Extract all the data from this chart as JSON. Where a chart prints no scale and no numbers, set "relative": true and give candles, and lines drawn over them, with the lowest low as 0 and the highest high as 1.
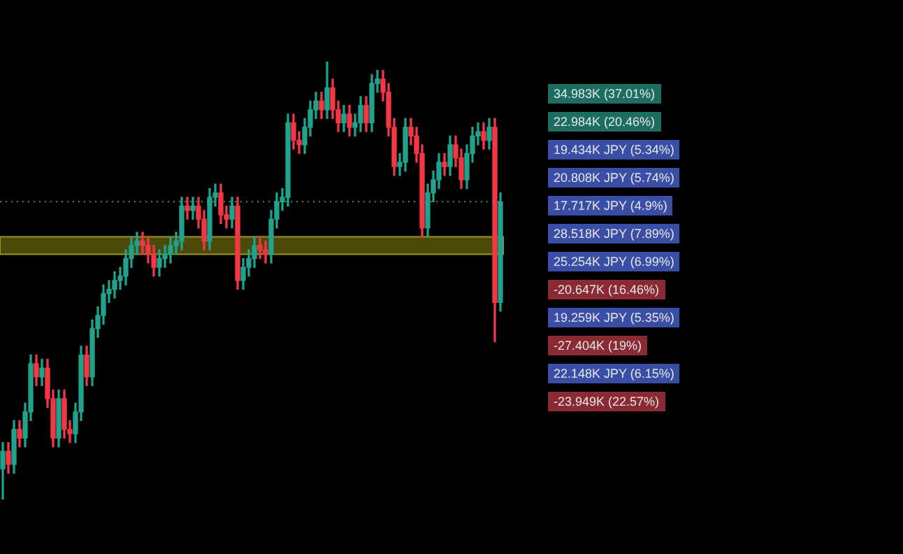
{
  "chart_data": {
    "type": "candlestick",
    "relative": true,
    "grid": false,
    "legend": false,
    "categories": [
      null,
      null,
      null,
      null,
      null,
      null,
      null,
      null,
      null,
      null,
      null,
      null,
      null,
      null,
      null,
      null,
      null,
      null,
      null,
      null,
      null,
      null,
      null,
      null,
      null,
      null,
      null,
      null,
      null,
      null,
      null,
      null,
      null,
      null,
      null,
      null,
      null,
      null,
      null,
      null,
      null,
      null,
      null,
      null,
      null,
      null,
      null,
      null,
      null,
      null,
      null,
      null,
      null,
      null,
      null,
      null,
      null,
      null,
      null,
      null,
      null,
      null,
      null,
      null,
      null,
      null,
      null,
      null,
      null,
      null,
      null,
      null,
      null,
      null,
      null,
      null,
      null,
      null,
      null,
      null,
      null,
      null,
      null,
      null,
      null,
      null,
      null,
      null,
      null,
      null
    ],
    "ohlc": [
      [
        0.07,
        0.13,
        0,
        0.11
      ],
      [
        0.11,
        0.13,
        0.06,
        0.08
      ],
      [
        0.08,
        0.18,
        0.06,
        0.16
      ],
      [
        0.16,
        0.18,
        0.12,
        0.14
      ],
      [
        0.14,
        0.22,
        0.12,
        0.2
      ],
      [
        0.2,
        0.33,
        0.18,
        0.31
      ],
      [
        0.31,
        0.33,
        0.26,
        0.28
      ],
      [
        0.28,
        0.32,
        0.26,
        0.3
      ],
      [
        0.3,
        0.32,
        0.21,
        0.23
      ],
      [
        0.23,
        0.25,
        0.12,
        0.14
      ],
      [
        0.14,
        0.25,
        0.12,
        0.23
      ],
      [
        0.23,
        0.25,
        0.14,
        0.16
      ],
      [
        0.16,
        0.18,
        0.13,
        0.15
      ],
      [
        0.15,
        0.22,
        0.13,
        0.2
      ],
      [
        0.2,
        0.35,
        0.18,
        0.33
      ],
      [
        0.33,
        0.35,
        0.26,
        0.28
      ],
      [
        0.28,
        0.41,
        0.26,
        0.39
      ],
      [
        0.39,
        0.44,
        0.37,
        0.42
      ],
      [
        0.42,
        0.49,
        0.4,
        0.47
      ],
      [
        0.47,
        0.5,
        0.45,
        0.48
      ],
      [
        0.48,
        0.52,
        0.46,
        0.5
      ],
      [
        0.5,
        0.53,
        0.48,
        0.51
      ],
      [
        0.51,
        0.57,
        0.49,
        0.55
      ],
      [
        0.55,
        0.6,
        0.53,
        0.58
      ],
      [
        0.58,
        0.61,
        0.56,
        0.59
      ],
      [
        0.59,
        0.61,
        0.56,
        0.58
      ],
      [
        0.58,
        0.6,
        0.54,
        0.56
      ],
      [
        0.56,
        0.58,
        0.51,
        0.53
      ],
      [
        0.53,
        0.57,
        0.51,
        0.55
      ],
      [
        0.55,
        0.58,
        0.53,
        0.56
      ],
      [
        0.56,
        0.6,
        0.54,
        0.58
      ],
      [
        0.58,
        0.61,
        0.56,
        0.59
      ],
      [
        0.59,
        0.69,
        0.57,
        0.67
      ],
      [
        0.67,
        0.69,
        0.64,
        0.66
      ],
      [
        0.66,
        0.69,
        0.64,
        0.67
      ],
      [
        0.67,
        0.69,
        0.62,
        0.64
      ],
      [
        0.64,
        0.66,
        0.57,
        0.59
      ],
      [
        0.59,
        0.71,
        0.57,
        0.69
      ],
      [
        0.69,
        0.72,
        0.67,
        0.7
      ],
      [
        0.7,
        0.72,
        0.63,
        0.65
      ],
      [
        0.65,
        0.67,
        0.62,
        0.64
      ],
      [
        0.64,
        0.69,
        0.62,
        0.67
      ],
      [
        0.67,
        0.69,
        0.48,
        0.5
      ],
      [
        0.5,
        0.55,
        0.48,
        0.53
      ],
      [
        0.53,
        0.57,
        0.51,
        0.55
      ],
      [
        0.55,
        0.6,
        0.53,
        0.58
      ],
      [
        0.58,
        0.6,
        0.55,
        0.57
      ],
      [
        0.57,
        0.59,
        0.54,
        0.56
      ],
      [
        0.56,
        0.66,
        0.54,
        0.64
      ],
      [
        0.64,
        0.7,
        0.62,
        0.68
      ],
      [
        0.68,
        0.71,
        0.66,
        0.69
      ],
      [
        0.69,
        0.88,
        0.67,
        0.86
      ],
      [
        0.86,
        0.88,
        0.8,
        0.82
      ],
      [
        0.82,
        0.84,
        0.79,
        0.81
      ],
      [
        0.81,
        0.87,
        0.79,
        0.85
      ],
      [
        0.85,
        0.91,
        0.83,
        0.89
      ],
      [
        0.89,
        0.93,
        0.87,
        0.91
      ],
      [
        0.91,
        0.93,
        0.87,
        0.89
      ],
      [
        0.89,
        1,
        0.87,
        0.94
      ],
      [
        0.94,
        0.96,
        0.87,
        0.89
      ],
      [
        0.89,
        0.91,
        0.84,
        0.86
      ],
      [
        0.86,
        0.9,
        0.84,
        0.88
      ],
      [
        0.88,
        0.9,
        0.83,
        0.85
      ],
      [
        0.85,
        0.88,
        0.83,
        0.86
      ],
      [
        0.86,
        0.92,
        0.84,
        0.9
      ],
      [
        0.9,
        0.92,
        0.84,
        0.86
      ],
      [
        0.86,
        0.97,
        0.84,
        0.95
      ],
      [
        0.95,
        0.98,
        0.93,
        0.96
      ],
      [
        0.96,
        0.98,
        0.91,
        0.93
      ],
      [
        0.93,
        0.95,
        0.83,
        0.85
      ],
      [
        0.85,
        0.87,
        0.74,
        0.76
      ],
      [
        0.76,
        0.79,
        0.74,
        0.77
      ],
      [
        0.77,
        0.87,
        0.75,
        0.85
      ],
      [
        0.85,
        0.87,
        0.81,
        0.83
      ],
      [
        0.83,
        0.85,
        0.77,
        0.79
      ],
      [
        0.79,
        0.81,
        0.6,
        0.62
      ],
      [
        0.62,
        0.72,
        0.6,
        0.7
      ],
      [
        0.7,
        0.75,
        0.68,
        0.73
      ],
      [
        0.73,
        0.79,
        0.71,
        0.77
      ],
      [
        0.77,
        0.79,
        0.74,
        0.76
      ],
      [
        0.76,
        0.83,
        0.74,
        0.81
      ],
      [
        0.81,
        0.83,
        0.76,
        0.78
      ],
      [
        0.78,
        0.8,
        0.71,
        0.73
      ],
      [
        0.73,
        0.81,
        0.71,
        0.79
      ],
      [
        0.79,
        0.85,
        0.77,
        0.83
      ],
      [
        0.83,
        0.86,
        0.81,
        0.84
      ],
      [
        0.84,
        0.86,
        0.8,
        0.82
      ],
      [
        0.82,
        0.87,
        0.8,
        0.85
      ],
      [
        0.85,
        0.87,
        0.36,
        0.45
      ],
      [
        0.45,
        0.7,
        0.43,
        0.68
      ]
    ],
    "bands": [
      {
        "axis": "y",
        "from": 0.56,
        "to": 0.6,
        "color": "#6b6a10"
      }
    ],
    "ref_lines": [
      {
        "axis": "y",
        "value": 0.68,
        "color": "#1a9a8a",
        "line_style": "dotted"
      }
    ],
    "annotations": [
      "34.983K (37.01%)",
      "22.984K (20.46%)",
      "19.434K JPY (5.34%)",
      "20.808K JPY (5.74%)",
      "17.717K JPY (4.9%)",
      "28.518K JPY (7.89%)",
      "25.254K JPY (6.99%)",
      "-20.647K (16.46%)",
      "19.259K JPY (5.35%)",
      "-27.404K (19%)",
      "22.148K JPY (6.15%)",
      "-23.949K (22.57%)"
    ]
  }
}
